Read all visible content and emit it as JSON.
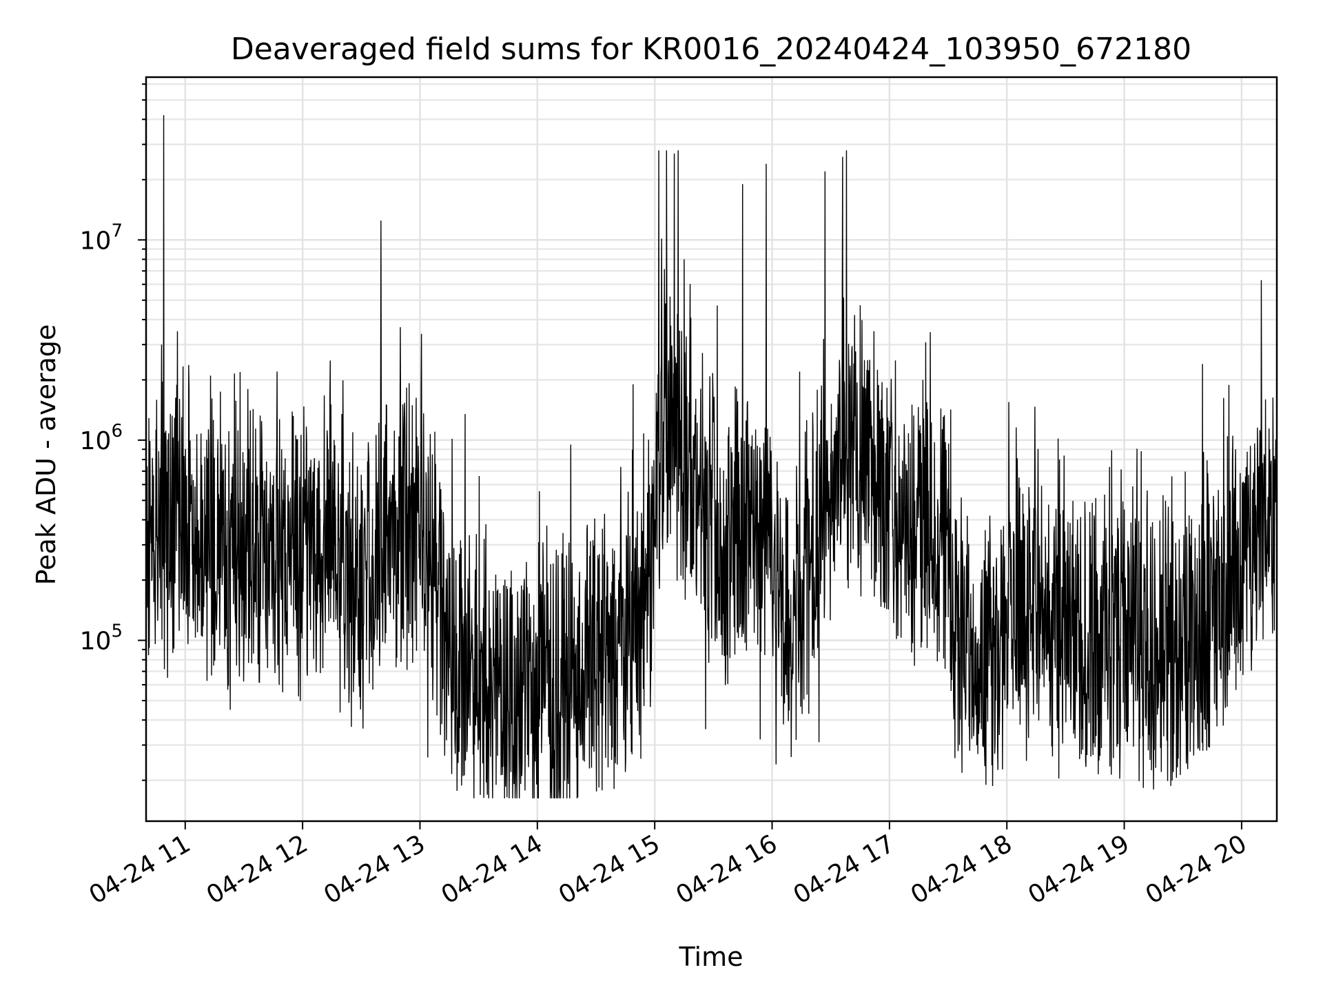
{
  "chart_data": {
    "type": "line",
    "title": "Deaveraged field sums for KR0016_20240424_103950_672180",
    "xlabel": "Time",
    "ylabel": "Peak ADU - average",
    "yscale": "log",
    "grid": true,
    "x_range": [
      "04-24 10:40",
      "04-24 20:18"
    ],
    "ylim": [
      12500,
      65000000
    ],
    "x_ticks": [
      "04-24 11",
      "04-24 12",
      "04-24 13",
      "04-24 14",
      "04-24 15",
      "04-24 16",
      "04-24 17",
      "04-24 18",
      "04-24 19",
      "04-24 20"
    ],
    "y_ticks": [
      {
        "value": 100000,
        "base": "10",
        "exp": "5"
      },
      {
        "value": 1000000,
        "base": "10",
        "exp": "6"
      },
      {
        "value": 10000000,
        "base": "10",
        "exp": "7"
      }
    ],
    "series_color": "#000000",
    "baseline": [
      [
        "04-24 10:40",
        350000
      ],
      [
        "04-24 11:00",
        450000
      ],
      [
        "04-24 11:20",
        300000
      ],
      [
        "04-24 11:45",
        250000
      ],
      [
        "04-24 12:10",
        300000
      ],
      [
        "04-24 12:30",
        180000
      ],
      [
        "04-24 12:50",
        400000
      ],
      [
        "04-24 13:00",
        400000
      ],
      [
        "04-24 13:15",
        110000
      ],
      [
        "04-24 13:40",
        60000
      ],
      [
        "04-24 14:00",
        55000
      ],
      [
        "04-24 14:20",
        70000
      ],
      [
        "04-24 14:40",
        90000
      ],
      [
        "04-24 14:55",
        110000
      ],
      [
        "04-24 15:05",
        1500000
      ],
      [
        "04-24 15:20",
        600000
      ],
      [
        "04-24 15:35",
        250000
      ],
      [
        "04-24 15:50",
        400000
      ],
      [
        "04-24 16:00",
        450000
      ],
      [
        "04-24 16:05",
        110000
      ],
      [
        "04-24 16:20",
        200000
      ],
      [
        "04-24 16:35",
        1200000
      ],
      [
        "04-24 16:55",
        600000
      ],
      [
        "04-24 17:10",
        400000
      ],
      [
        "04-24 17:30",
        350000
      ],
      [
        "04-24 17:35",
        110000
      ],
      [
        "04-24 17:55",
        80000
      ],
      [
        "04-24 18:10",
        200000
      ],
      [
        "04-24 18:30",
        100000
      ],
      [
        "04-24 19:00",
        100000
      ],
      [
        "04-24 19:20",
        80000
      ],
      [
        "04-24 19:40",
        120000
      ],
      [
        "04-24 20:00",
        250000
      ],
      [
        "04-24 20:18",
        550000
      ]
    ],
    "peaks": [
      [
        "04-24 10:48",
        3000000
      ],
      [
        "04-24 10:49",
        42000000
      ],
      [
        "04-24 10:56",
        3500000
      ],
      [
        "04-24 11:02",
        1800000
      ],
      [
        "04-24 11:13",
        2100000
      ],
      [
        "04-24 11:32",
        1800000
      ],
      [
        "04-24 11:47",
        2200000
      ],
      [
        "04-24 12:20",
        1350000
      ],
      [
        "04-24 12:40",
        12500000
      ],
      [
        "04-24 13:23",
        1350000
      ],
      [
        "04-24 14:17",
        950000
      ],
      [
        "04-24 14:49",
        1900000
      ],
      [
        "04-24 15:02",
        28000000
      ],
      [
        "04-24 15:06",
        28000000
      ],
      [
        "04-24 15:10",
        27000000
      ],
      [
        "04-24 15:12",
        28000000
      ],
      [
        "04-24 15:15",
        8000000
      ],
      [
        "04-24 15:32",
        4700000
      ],
      [
        "04-24 15:45",
        19000000
      ],
      [
        "04-24 15:57",
        24000000
      ],
      [
        "04-24 16:14",
        2200000
      ],
      [
        "04-24 16:27",
        22000000
      ],
      [
        "04-24 16:36",
        26000000
      ],
      [
        "04-24 16:38",
        28000000
      ],
      [
        "04-24 16:52",
        3500000
      ],
      [
        "04-24 17:03",
        2500000
      ],
      [
        "04-24 17:17",
        2000000
      ],
      [
        "04-24 18:01",
        1550000
      ],
      [
        "04-24 18:27",
        800000
      ],
      [
        "04-24 19:00",
        450000
      ],
      [
        "04-24 19:40",
        2400000
      ],
      [
        "04-24 19:57",
        900000
      ],
      [
        "04-24 20:10",
        6300000
      ]
    ],
    "dips": [
      [
        "04-24 10:51",
        65000
      ],
      [
        "04-24 11:23",
        45000
      ],
      [
        "04-24 12:25",
        37000
      ],
      [
        "04-24 13:04",
        26000
      ],
      [
        "04-24 13:22",
        21000
      ],
      [
        "04-24 13:52",
        21000
      ],
      [
        "04-24 14:11",
        18000
      ],
      [
        "04-24 14:45",
        22000
      ],
      [
        "04-24 15:26",
        36000
      ],
      [
        "04-24 15:54",
        32000
      ],
      [
        "04-24 16:02",
        24000
      ],
      [
        "04-24 16:24",
        31000
      ],
      [
        "04-24 17:35",
        28000
      ],
      [
        "04-24 18:10",
        25000
      ],
      [
        "04-24 18:38",
        27000
      ],
      [
        "04-24 19:15",
        18000
      ],
      [
        "04-24 19:25",
        22000
      ],
      [
        "04-24 19:47",
        45000
      ]
    ]
  }
}
